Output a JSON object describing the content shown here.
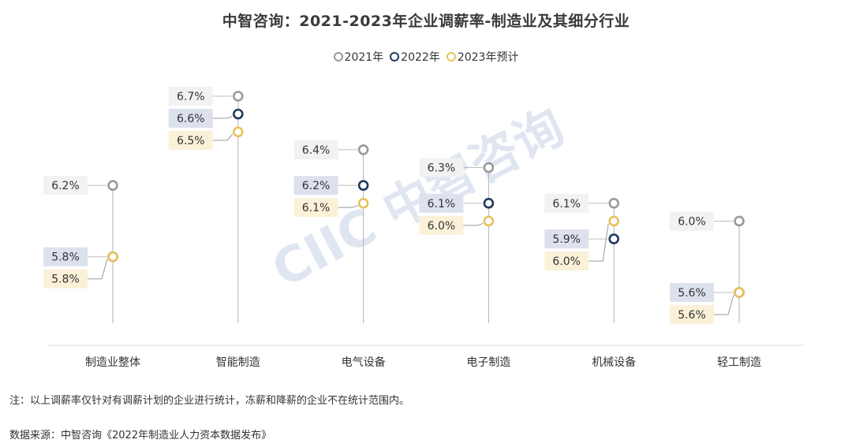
{
  "chart_data": {
    "type": "scatter",
    "title": "中智咨询：2021-2023年企业调薪率-制造业及其细分行业",
    "categories": [
      "制造业整体",
      "智能制造",
      "电气设备",
      "电子制造",
      "机械设备",
      "轻工制造"
    ],
    "series": [
      {
        "name": "2021年",
        "color": "#9a9a9a",
        "values": [
          6.2,
          6.7,
          6.4,
          6.3,
          6.1,
          6.0
        ],
        "labels": [
          "6.2%",
          "6.7%",
          "6.4%",
          "6.3%",
          "6.1%",
          "6.0%"
        ]
      },
      {
        "name": "2022年",
        "color": "#1f3b5e",
        "values": [
          5.8,
          6.6,
          6.2,
          6.1,
          5.9,
          5.6
        ],
        "labels": [
          "5.8%",
          "6.6%",
          "6.2%",
          "6.1%",
          "5.9%",
          "5.6%"
        ]
      },
      {
        "name": "2023年预计",
        "color": "#e8c15a",
        "values": [
          5.8,
          6.5,
          6.1,
          6.0,
          6.0,
          5.6
        ],
        "labels": [
          "5.8%",
          "6.5%",
          "6.1%",
          "6.0%",
          "6.0%",
          "5.6%"
        ]
      }
    ],
    "y_unit": "%",
    "ylim": [
      5.2,
      6.8
    ],
    "label_colors": {
      "2021年": "#f2f2f2",
      "2022年": "#dde1ee",
      "2023年预计": "#fbf1d8"
    },
    "grid": false,
    "legend_position": "top-center"
  },
  "watermark": "CIIC 中智咨询",
  "footer": {
    "note": "注：以上调薪率仅针对有调薪计划的企业进行统计，冻薪和降薪的企业不在统计范围内。",
    "source": "数据来源：中智咨询《2022年制造业人力资本数据发布》"
  }
}
